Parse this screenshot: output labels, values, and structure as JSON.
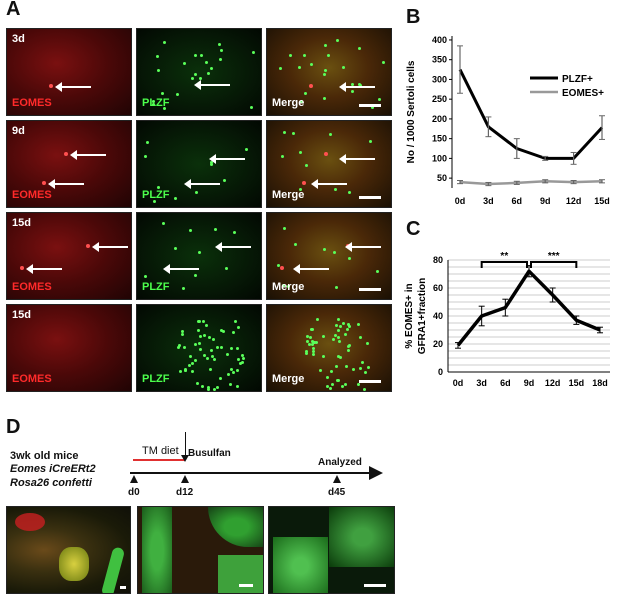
{
  "panel_letters": {
    "a": "A",
    "b": "B",
    "c": "C",
    "d": "D"
  },
  "panel_a": {
    "rows": [
      {
        "day": "3d",
        "arrows": [
          [
            0.43,
            0.65
          ]
        ],
        "plzf_arrows": [
          [
            0.5,
            0.62
          ]
        ],
        "merge_arrows": [
          [
            0.62,
            0.65
          ]
        ]
      },
      {
        "day": "9d",
        "arrows": [
          [
            0.55,
            0.38
          ],
          [
            0.37,
            0.7
          ]
        ],
        "plzf_arrows": [
          [
            0.62,
            0.42
          ],
          [
            0.42,
            0.7
          ]
        ],
        "merge_arrows": [
          [
            0.62,
            0.42
          ],
          [
            0.4,
            0.7
          ]
        ]
      },
      {
        "day": "15d",
        "arrows": [
          [
            0.72,
            0.38
          ],
          [
            0.2,
            0.62
          ]
        ],
        "plzf_arrows": [
          [
            0.67,
            0.38
          ],
          [
            0.25,
            0.62
          ]
        ],
        "merge_arrows": [
          [
            0.67,
            0.38
          ],
          [
            0.25,
            0.62
          ]
        ]
      },
      {
        "day": "15d",
        "arrows": [],
        "plzf_arrows": [],
        "merge_arrows": []
      }
    ],
    "labels": {
      "eomes": "EOMES",
      "plzf": "PLZF",
      "merge": "Merge"
    }
  },
  "chart_data": [
    {
      "type": "line",
      "panel": "B",
      "categories": [
        "0d",
        "3d",
        "6d",
        "9d",
        "12d",
        "15d"
      ],
      "ylabel": "No / 1000 Sertoli cells",
      "yticks": [
        50,
        100,
        150,
        200,
        250,
        300,
        350,
        400
      ],
      "ylim": [
        25,
        410
      ],
      "legend_position": "top-right",
      "series": [
        {
          "name": "PLZF+",
          "color": "#000000",
          "values": [
            325,
            180,
            125,
            100,
            100,
            178
          ],
          "errors": [
            60,
            25,
            25,
            5,
            15,
            30
          ]
        },
        {
          "name": "EOMES+",
          "color": "#999999",
          "values": [
            40,
            35,
            38,
            42,
            40,
            42
          ],
          "errors": [
            4,
            4,
            4,
            4,
            4,
            4
          ]
        }
      ]
    },
    {
      "type": "line",
      "panel": "C",
      "categories": [
        "0d",
        "3d",
        "6d",
        "9d",
        "12d",
        "15d",
        "18d"
      ],
      "ylabel": "% EOMES+ in GFRA1+fraction",
      "yticks": [
        0,
        20,
        40,
        60,
        80
      ],
      "ylim": [
        0,
        80
      ],
      "grid": true,
      "series": [
        {
          "color": "#000000",
          "values": [
            19,
            40,
            46,
            72,
            55,
            37,
            30
          ],
          "errors": [
            2,
            7,
            6,
            4,
            5,
            3,
            2
          ]
        }
      ],
      "significance": [
        {
          "from": "3d",
          "to": "9d",
          "label": "**"
        },
        {
          "from": "9d",
          "to": "15d",
          "label": "***"
        }
      ]
    }
  ],
  "panel_d": {
    "mouse_lines": [
      "3wk old mice",
      "Eomes iCreERt2",
      "Rosa26 confetti"
    ],
    "tm_diet": "TM diet",
    "busulfan": "Busulfan",
    "analyzed": "Analyzed",
    "ticks": [
      "d0",
      "d12",
      "d45"
    ]
  }
}
